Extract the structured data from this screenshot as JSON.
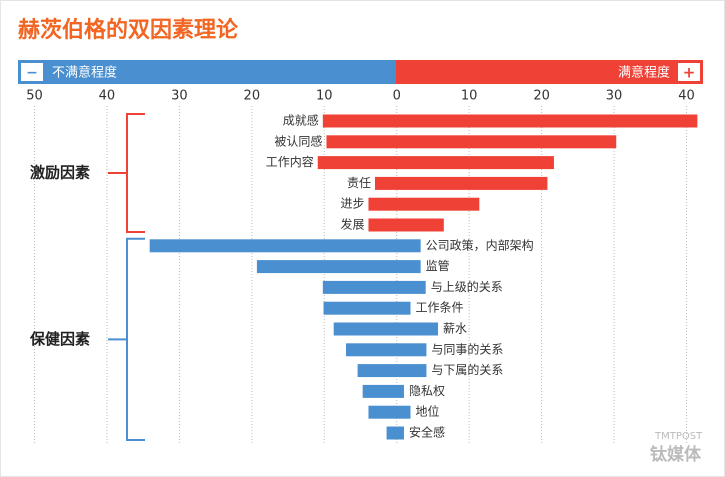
{
  "chart_data": {
    "type": "floating-bar",
    "title": "赫茨伯格的双因素理论",
    "left_label": "不满意程度",
    "right_label": "满意程度",
    "left_sign": "−",
    "right_sign": "+",
    "xlim": [
      -52,
      42
    ],
    "xticks": [
      {
        "value": -50,
        "label": "50"
      },
      {
        "value": -40,
        "label": "40"
      },
      {
        "value": -30,
        "label": "30"
      },
      {
        "value": -20,
        "label": "20"
      },
      {
        "value": -10,
        "label": "10"
      },
      0,
      10,
      20,
      30,
      40
    ],
    "grid": true,
    "series": [
      {
        "name": "激励因素",
        "color": "#ef4136",
        "label_side": "left",
        "categories": [
          "成就感",
          "被认同感",
          "工作内容",
          "责任",
          "进步",
          "发展"
        ],
        "low": [
          -10.2,
          -9.7,
          -10.9,
          -3.0,
          -3.9,
          -3.9
        ],
        "high": [
          41.5,
          30.3,
          21.7,
          20.8,
          11.4,
          6.5
        ]
      },
      {
        "name": "保健因素",
        "color": "#4a8fd0",
        "label_side": "right",
        "categories": [
          "公司政策，内部架构",
          "监管",
          "与上级的关系",
          "工作条件",
          "薪水",
          "与同事的关系",
          "与下属的关系",
          "隐私权",
          "地位",
          "安全感"
        ],
        "low": [
          -34.1,
          -19.3,
          -10.2,
          -10.1,
          -8.7,
          -7.0,
          -5.4,
          -4.7,
          -3.9,
          -1.4
        ],
        "high": [
          3.3,
          3.3,
          4.0,
          1.9,
          5.7,
          4.1,
          4.1,
          1.0,
          1.9,
          1.0
        ]
      }
    ],
    "watermark": {
      "brand": "钛媒体",
      "site": "TMTPOST"
    }
  }
}
